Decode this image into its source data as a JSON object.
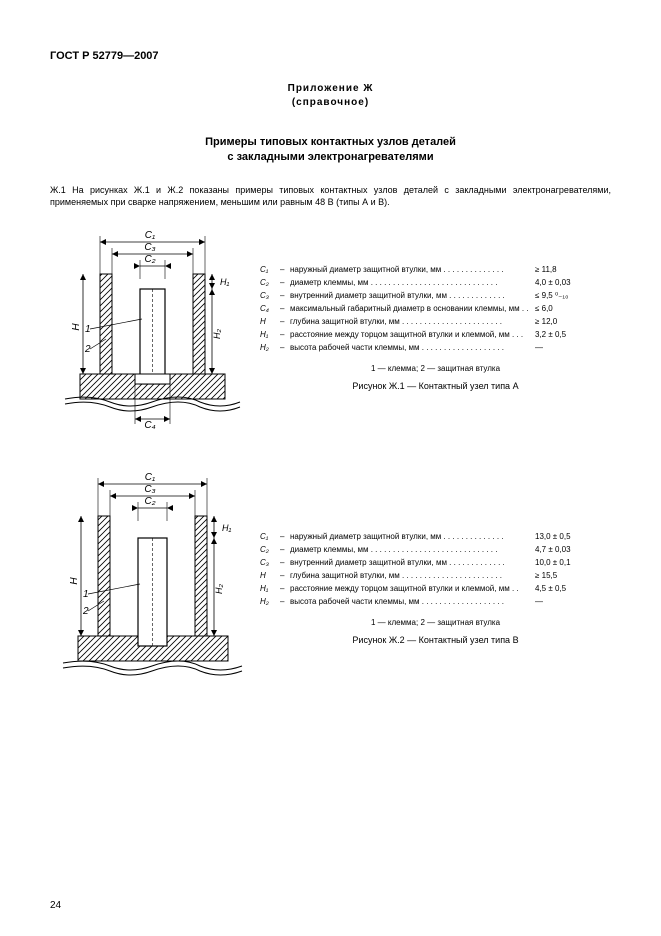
{
  "header": "ГОСТ Р 52779—2007",
  "annex_line1": "Приложение Ж",
  "annex_line2": "(справочное)",
  "title_line1": "Примеры типовых контактных узлов деталей",
  "title_line2": "с закладными электронагревателями",
  "intro": "Ж.1 На рисунках Ж.1 и Ж.2 показаны примеры типовых контактных узлов деталей с закладными электронагревателями, применяемых при сварке напряжением, меньшим или равным 48 В (типы А и В).",
  "figA": {
    "legend": [
      {
        "sym": "C₁",
        "desc": "наружный диаметр защитной втулки, мм . . . . . . . . . . . . . .",
        "val": "≥ 11,8"
      },
      {
        "sym": "C₂",
        "desc": "диаметр клеммы, мм . . . . . . . . . . . . . . . . . . . . . . . . . . . . .",
        "val": "4,0 ± 0,03"
      },
      {
        "sym": "C₃",
        "desc": "внутренний диаметр защитной втулки, мм . . . . . . . . . . . . .",
        "val": "≤ 9,5 ⁰₋₁₀"
      },
      {
        "sym": "C₄",
        "desc": "максимальный габаритный диаметр в основании клеммы, мм . .",
        "val": "≤ 6,0"
      },
      {
        "sym": "H",
        "desc": "глубина защитной втулки, мм . . . . . . . . . . . . . . . . . . . . . . .",
        "val": "≥ 12,0"
      },
      {
        "sym": "H₁",
        "desc": "расстояние между торцом защитной втулки и клеммой, мм . . .",
        "val": "3,2 ± 0,5"
      },
      {
        "sym": "H₂",
        "desc": "высота рабочей части клеммы, мм . . . . . . . . . . . . . . . . . . .",
        "val": "—"
      }
    ],
    "note": "1 — клемма; 2 — защитная втулка",
    "caption": "Рисунок Ж.1 — Контактный узел типа А",
    "diagram": {
      "bg": "#ffffff",
      "stroke": "#000000",
      "hatch_spacing": 5,
      "labels": {
        "C1": "C₁",
        "C2": "C₂",
        "C3": "C₃",
        "C4": "C₄",
        "H": "H",
        "H1": "H₁",
        "H2": "H₂",
        "n1": "1",
        "n2": "2"
      }
    }
  },
  "figB": {
    "legend": [
      {
        "sym": "C₁",
        "desc": "наружный диаметр защитной втулки, мм . . . . . . . . . . . . . .",
        "val": "13,0 ± 0,5"
      },
      {
        "sym": "C₂",
        "desc": "диаметр клеммы, мм . . . . . . . . . . . . . . . . . . . . . . . . . . . . .",
        "val": "4,7 ± 0,03"
      },
      {
        "sym": "C₃",
        "desc": "внутренний диаметр защитной втулки, мм . . . . . . . . . . . . .",
        "val": "10,0 ± 0,1"
      },
      {
        "sym": "H",
        "desc": "глубина защитной втулки, мм . . . . . . . . . . . . . . . . . . . . . . .",
        "val": "≥ 15,5"
      },
      {
        "sym": "H₁",
        "desc": "расстояние между торцом защитной втулки и клеммой, мм . .",
        "val": "4,5 ± 0,5"
      },
      {
        "sym": "H₂",
        "desc": "высота рабочей части клеммы, мм . . . . . . . . . . . . . . . . . . .",
        "val": "—"
      }
    ],
    "note": "1 — клемма; 2 — защитная втулка",
    "caption": "Рисунок Ж.2 — Контактный узел типа В",
    "diagram": {
      "bg": "#ffffff",
      "stroke": "#000000",
      "hatch_spacing": 5,
      "labels": {
        "C1": "C₁",
        "C2": "C₂",
        "C3": "C₃",
        "H": "H",
        "H1": "H₁",
        "H2": "H₂",
        "n1": "1",
        "n2": "2"
      }
    }
  },
  "pagenum": "24"
}
